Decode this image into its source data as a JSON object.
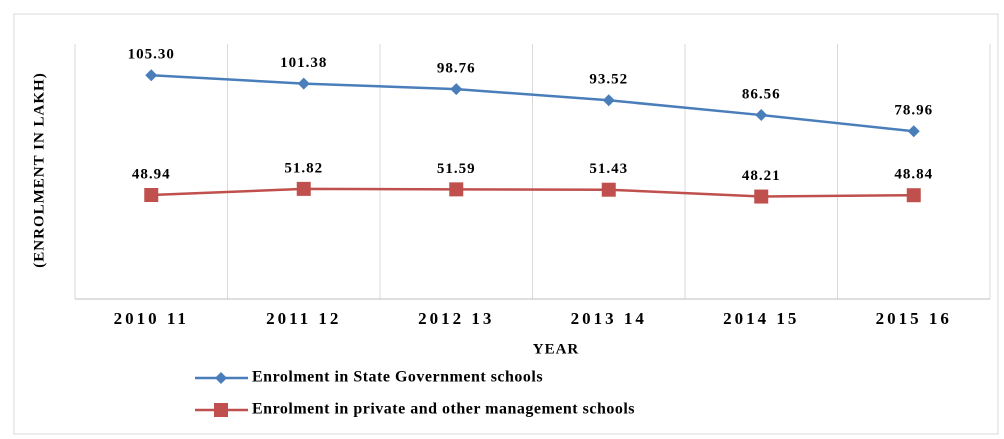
{
  "chart_data": {
    "type": "line",
    "y_label": "(ENROLMENT IN LAKH)",
    "x_label": "YEAR",
    "categories": [
      "2010 11",
      "2011 12",
      "2012 13",
      "2013 14",
      "2014 15",
      "2015 16"
    ],
    "series": [
      {
        "name": "Enrolment in State Government schools",
        "color": "#4a7ebb",
        "marker": "diamond",
        "values": [
          105.3,
          101.38,
          98.76,
          93.52,
          86.56,
          78.96
        ],
        "value_labels": [
          "105.30",
          "101.38",
          "98.76",
          "93.52",
          "86.56",
          "78.96"
        ]
      },
      {
        "name": "Enrolment in private and other management schools",
        "color": "#c0504d",
        "marker": "square",
        "values": [
          48.94,
          51.82,
          51.59,
          51.43,
          48.21,
          48.84
        ],
        "value_labels": [
          "48.94",
          "51.82",
          "51.59",
          "51.43",
          "48.21",
          "48.84"
        ]
      }
    ],
    "ylim": [
      0,
      120
    ],
    "yticks": [],
    "grid": true
  }
}
